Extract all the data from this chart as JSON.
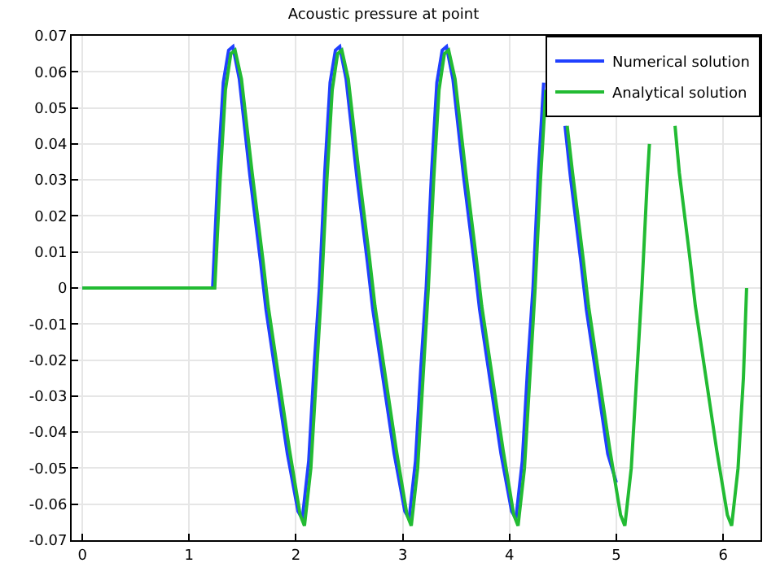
{
  "chart_data": {
    "type": "line",
    "title": "Acoustic pressure at point",
    "xlim": [
      -0.1,
      6.35
    ],
    "ylim": [
      -0.07,
      0.07
    ],
    "xticks": [
      0,
      1,
      2,
      3,
      4,
      5,
      6
    ],
    "yticks": [
      -0.07,
      -0.06,
      -0.05,
      -0.04,
      -0.03,
      -0.02,
      -0.01,
      0,
      0.01,
      0.02,
      0.03,
      0.04,
      0.05,
      0.06,
      0.07
    ],
    "grid": true,
    "legend": "top right",
    "marker": "none",
    "line_style": "solid",
    "series": [
      {
        "name": "Numerical solution",
        "color": "#2040ff",
        "x": [
          0,
          1.22,
          1.27,
          1.32,
          1.37,
          1.41,
          1.47,
          1.57,
          1.67,
          1.72,
          1.82,
          1.92,
          2.02,
          2.06,
          2.12,
          2.17,
          2.22,
          2.27,
          2.32,
          2.37,
          2.41,
          2.47,
          2.57,
          2.67,
          2.72,
          2.82,
          2.92,
          3.02,
          3.06,
          3.12,
          3.17,
          3.22,
          3.27,
          3.32,
          3.37,
          3.41,
          3.47,
          3.57,
          3.67,
          3.72,
          3.82,
          3.92,
          4.02,
          4.06,
          4.12,
          4.17,
          4.22,
          4.27,
          4.32,
          4.37,
          4.41,
          4.47,
          4.52,
          4.57,
          4.67,
          4.72,
          4.82,
          4.92,
          5.0
        ],
        "values": [
          0,
          0,
          0.032,
          0.057,
          0.066,
          0.067,
          0.058,
          0.031,
          0.007,
          -0.006,
          -0.026,
          -0.046,
          -0.062,
          -0.064,
          -0.048,
          -0.022,
          0,
          0.032,
          0.057,
          0.066,
          0.067,
          0.058,
          0.031,
          0.007,
          -0.006,
          -0.026,
          -0.046,
          -0.062,
          -0.064,
          -0.048,
          -0.022,
          0,
          0.032,
          0.057,
          0.066,
          0.067,
          0.058,
          0.031,
          0.007,
          -0.006,
          -0.026,
          -0.046,
          -0.062,
          -0.064,
          -0.048,
          -0.022,
          0,
          0.032,
          0.057,
          null,
          null,
          null,
          0.045,
          0.031,
          0.007,
          -0.006,
          -0.026,
          -0.046,
          -0.054
        ]
      },
      {
        "name": "Analytical solution",
        "color": "#22bb33",
        "x": [
          0,
          1.24,
          1.29,
          1.34,
          1.39,
          1.43,
          1.49,
          1.59,
          1.69,
          1.74,
          1.84,
          1.94,
          2.04,
          2.08,
          2.14,
          2.19,
          2.24,
          2.29,
          2.34,
          2.39,
          2.43,
          2.49,
          2.59,
          2.69,
          2.74,
          2.84,
          2.94,
          3.04,
          3.08,
          3.14,
          3.19,
          3.24,
          3.29,
          3.34,
          3.39,
          3.43,
          3.49,
          3.59,
          3.69,
          3.74,
          3.84,
          3.94,
          4.04,
          4.08,
          4.14,
          4.19,
          4.24,
          4.29,
          4.34,
          4.39,
          4.43,
          4.49,
          4.54,
          4.59,
          4.69,
          4.74,
          4.84,
          4.94,
          5.04,
          5.08,
          5.14,
          5.19,
          5.24,
          5.29,
          5.31,
          5.34,
          5.39,
          5.43,
          5.49,
          5.55,
          5.59,
          5.69,
          5.74,
          5.84,
          5.94,
          6.04,
          6.08,
          6.14,
          6.19,
          6.22
        ],
        "values": [
          0,
          0,
          0.03,
          0.055,
          0.065,
          0.066,
          0.058,
          0.032,
          0.008,
          -0.005,
          -0.025,
          -0.045,
          -0.063,
          -0.066,
          -0.05,
          -0.025,
          0,
          0.03,
          0.055,
          0.065,
          0.066,
          0.058,
          0.032,
          0.008,
          -0.005,
          -0.025,
          -0.045,
          -0.063,
          -0.066,
          -0.05,
          -0.025,
          0,
          0.03,
          0.055,
          0.065,
          0.066,
          0.058,
          0.032,
          0.008,
          -0.005,
          -0.025,
          -0.045,
          -0.063,
          -0.066,
          -0.05,
          -0.025,
          0,
          0.03,
          0.055,
          null,
          null,
          null,
          0.045,
          0.032,
          0.008,
          -0.005,
          -0.025,
          -0.045,
          -0.063,
          -0.066,
          -0.05,
          -0.025,
          0,
          0.03,
          0.04,
          null,
          null,
          null,
          null,
          0.045,
          0.032,
          0.008,
          -0.005,
          -0.025,
          -0.045,
          -0.063,
          -0.066,
          -0.05,
          -0.025,
          0
        ]
      }
    ]
  }
}
